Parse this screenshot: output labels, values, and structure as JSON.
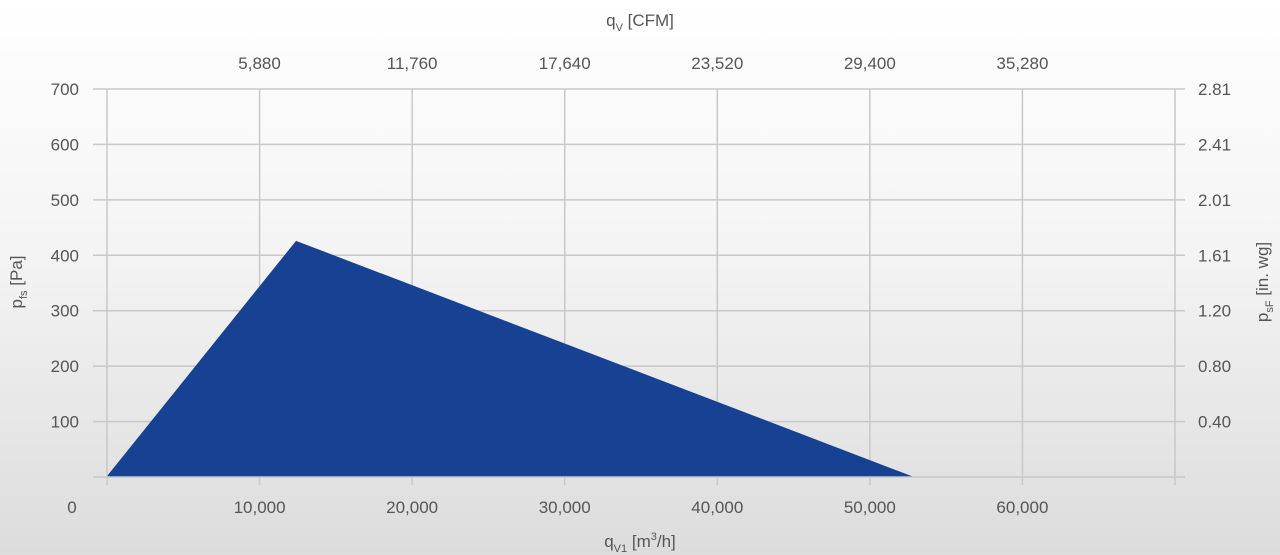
{
  "chart_data": {
    "type": "area",
    "x": [
      0,
      12400,
      52800
    ],
    "y": [
      0,
      425,
      0
    ],
    "fill_color": "#174193",
    "xlim": [
      0,
      70000
    ],
    "ylim": [
      0,
      700
    ],
    "grid": true,
    "bottom_axis": {
      "ticks": [
        0,
        10000,
        20000,
        30000,
        40000,
        50000,
        60000
      ],
      "tick_labels": [
        "0",
        "10,000",
        "20,000",
        "30,000",
        "40,000",
        "50,000",
        "60,000"
      ],
      "label_main": "q",
      "label_sub": "V1",
      "label_unit_pre": " [m",
      "label_unit_sup": "3",
      "label_unit_post": "/h]"
    },
    "top_axis": {
      "tick_labels": [
        "5,880",
        "11,760",
        "17,640",
        "23,520",
        "29,400",
        "35,280"
      ],
      "tick_positions_m3h": [
        10000,
        20000,
        30000,
        40000,
        50000,
        60000
      ],
      "label_main": "q",
      "label_sub": "V",
      "label_unit": " [CFM]"
    },
    "left_axis": {
      "ticks": [
        100,
        200,
        300,
        400,
        500,
        600,
        700
      ],
      "tick_labels": [
        "100",
        "200",
        "300",
        "400",
        "500",
        "600",
        "700"
      ],
      "label_main": "p",
      "label_sub": "fs",
      "label_unit": " [Pa]"
    },
    "right_axis": {
      "tick_labels": [
        "0.40",
        "0.80",
        "1.20",
        "1.61",
        "2.01",
        "2.41",
        "2.81"
      ],
      "tick_positions_pa": [
        100,
        200,
        300,
        400,
        500,
        600,
        700
      ],
      "label_main": "p",
      "label_sub": "sF",
      "label_unit": " [in. wg]"
    }
  }
}
